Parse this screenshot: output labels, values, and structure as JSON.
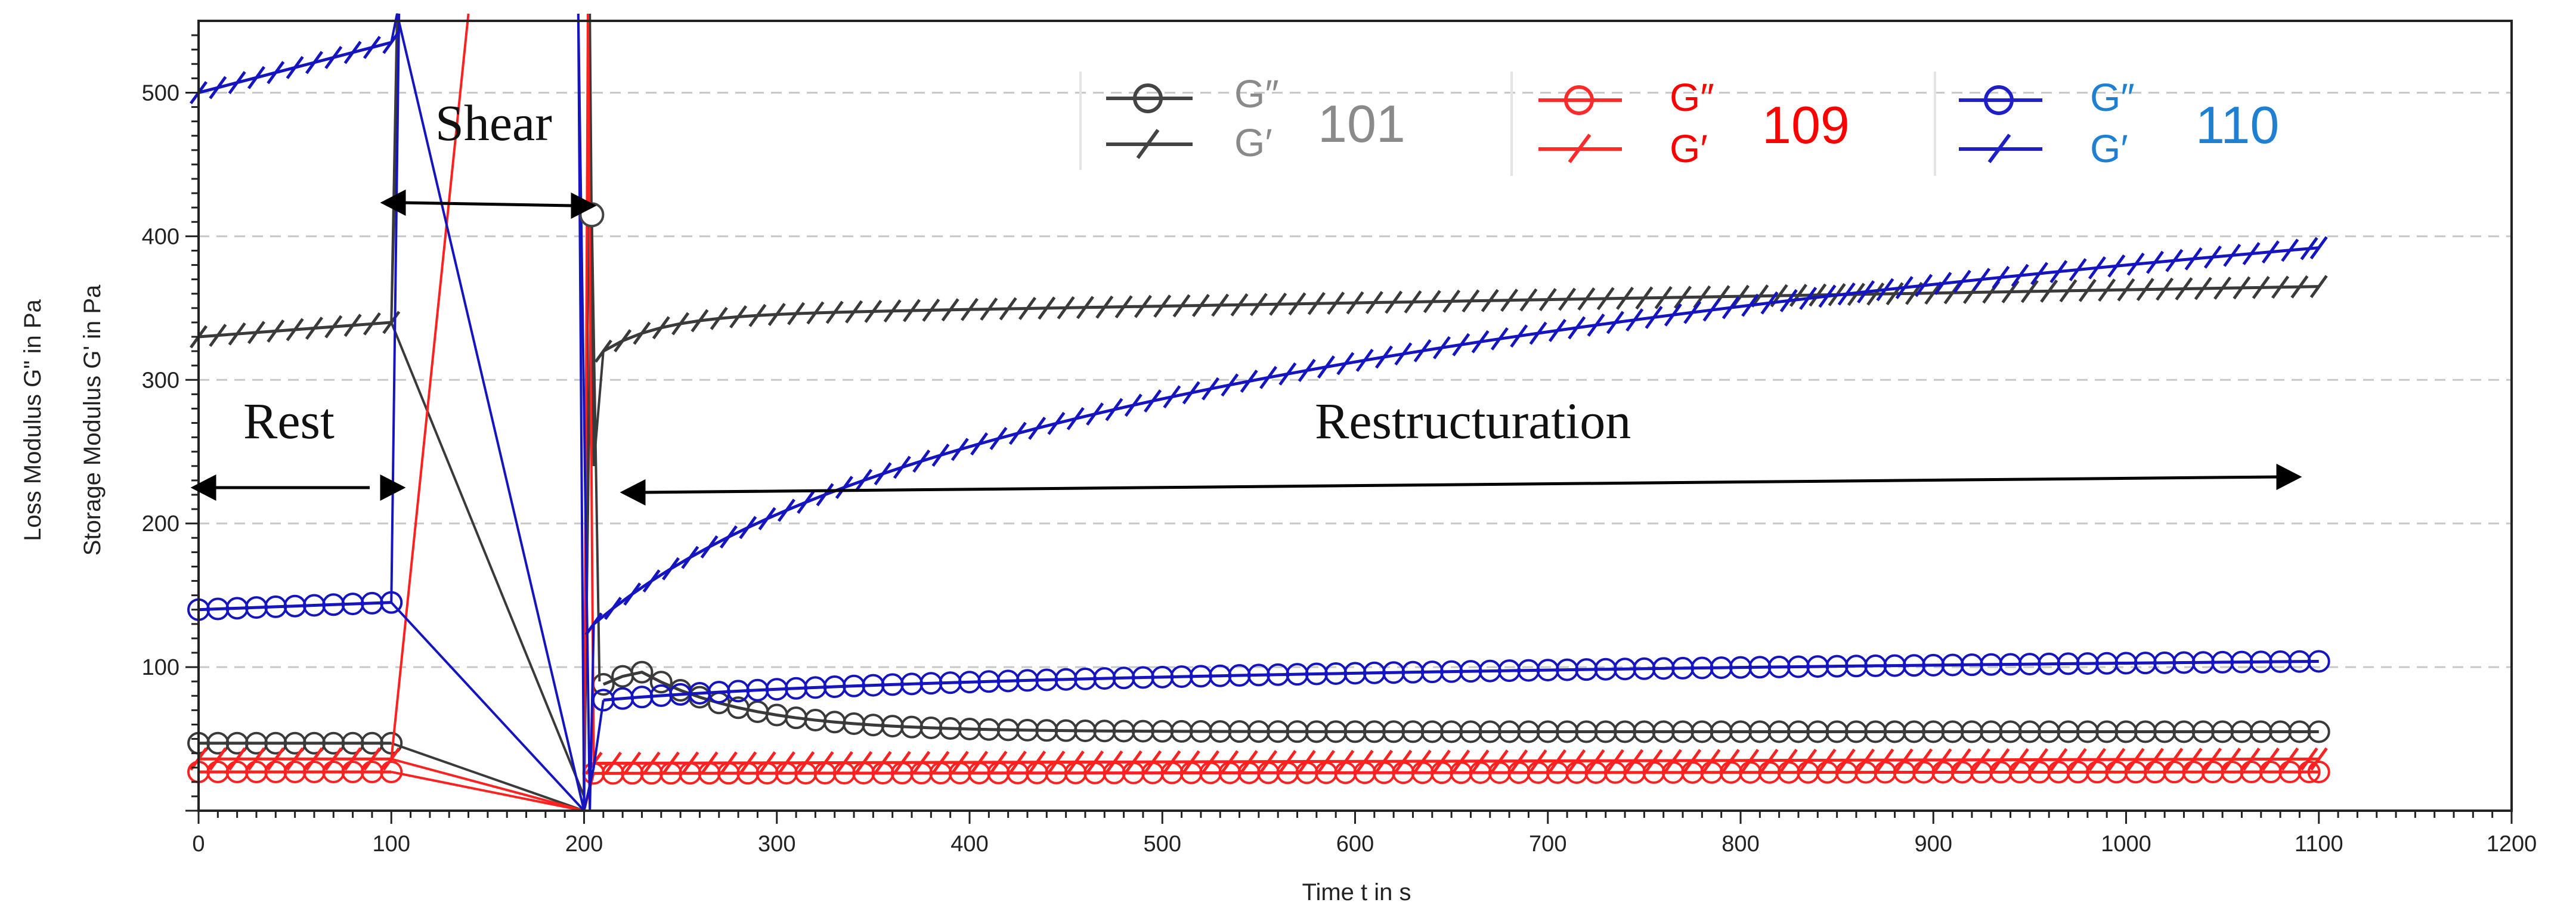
{
  "chart_data": {
    "type": "line",
    "xlabel": "Time t  in s",
    "ylabel_loss": "Loss Modulus G\" in Pa",
    "ylabel_storage": "Storage Modulus G' in Pa",
    "xlim": [
      0,
      1200
    ],
    "ylim": [
      0,
      550
    ],
    "xticks": [
      0,
      100,
      200,
      300,
      400,
      500,
      600,
      700,
      800,
      900,
      1000,
      1100,
      1200
    ],
    "yticks": [
      100,
      200,
      300,
      400,
      500
    ],
    "legend": [
      {
        "id": "101",
        "g2_label": "G″",
        "g1_label": "G′",
        "color": "#444444",
        "label_color": "#8a8a8a",
        "id_color": "#8a8a8a"
      },
      {
        "id": "109",
        "g2_label": "G″",
        "g1_label": "G′",
        "color": "#ff2a2a",
        "label_color": "#ff0000",
        "id_color": "#ff0000"
      },
      {
        "id": "110",
        "g2_label": "G″",
        "g1_label": "G′",
        "color": "#1f1fc8",
        "label_color": "#1f7fd0",
        "id_color": "#1f7fd0"
      }
    ],
    "annotations": {
      "rest": "Rest",
      "shear": "Shear",
      "restructuration": "Restructuration"
    },
    "series": [
      {
        "name": "101 G'",
        "color": "#3a3a3a",
        "marker": "slash",
        "segments": [
          {
            "x0": 0,
            "x1": 100,
            "y0": 330,
            "y1": 340
          },
          {
            "x0": 210,
            "x1": 1100,
            "y0": 320,
            "y1": 365,
            "model": "sat",
            "k": 30
          }
        ],
        "shear_path": [
          [
            100,
            340
          ],
          [
            103,
            555
          ],
          [
            104,
            550
          ],
          [
            100,
            340
          ],
          [
            200,
            10
          ],
          [
            203,
            555
          ],
          [
            205,
            240
          ],
          [
            210,
            320
          ]
        ]
      },
      {
        "name": "101 G\"",
        "color": "#3a3a3a",
        "marker": "circle",
        "segments": [
          {
            "x0": 0,
            "x1": 100,
            "y0": 47,
            "y1": 47
          },
          {
            "x0": 210,
            "x1": 1100,
            "peak_x": 228,
            "peak_y": 98,
            "end_y": 55,
            "model": "decay"
          }
        ],
        "shear_path": [
          [
            100,
            47
          ],
          [
            200,
            0
          ],
          [
            204,
            415
          ],
          [
            208,
            90
          ]
        ]
      },
      {
        "name": "109 G'",
        "color": "#ff2020",
        "marker": "slash",
        "segments": [
          {
            "x0": 0,
            "x1": 100,
            "y0": 36,
            "y1": 36
          },
          {
            "x0": 205,
            "x1": 1100,
            "y0": 33,
            "y1": 36,
            "model": "lin"
          }
        ],
        "shear_path": [
          [
            100,
            36
          ],
          [
            140,
            555
          ],
          [
            100,
            36
          ],
          [
            200,
            0
          ],
          [
            202,
            555
          ],
          [
            205,
            33
          ]
        ]
      },
      {
        "name": "109 G\"",
        "color": "#ff2020",
        "marker": "circle",
        "segments": [
          {
            "x0": 0,
            "x1": 100,
            "y0": 27,
            "y1": 27
          },
          {
            "x0": 205,
            "x1": 1100,
            "y0": 26,
            "y1": 27,
            "model": "lin"
          }
        ],
        "shear_path": [
          [
            100,
            27
          ],
          [
            200,
            0
          ],
          [
            205,
            26
          ]
        ]
      },
      {
        "name": "110 G'",
        "color": "#1414c0",
        "marker": "slash",
        "segments": [
          {
            "x0": 0,
            "x1": 100,
            "y0": 500,
            "y1": 535
          },
          {
            "x0": 205,
            "x1": 1100,
            "y0": 130,
            "y1": 392,
            "model": "log"
          }
        ],
        "shear_path": [
          [
            100,
            535
          ],
          [
            103,
            555
          ],
          [
            200,
            0
          ],
          [
            197,
            555
          ],
          [
            203,
            0
          ],
          [
            205,
            130
          ]
        ]
      },
      {
        "name": "110 G\"",
        "color": "#1414c0",
        "marker": "circle",
        "segments": [
          {
            "x0": 0,
            "x1": 100,
            "y0": 140,
            "y1": 145
          },
          {
            "x0": 210,
            "x1": 1100,
            "y0": 77,
            "y1": 104,
            "model": "log"
          }
        ],
        "shear_path": [
          [
            100,
            145
          ],
          [
            104,
            555
          ],
          [
            104,
            555
          ],
          [
            100,
            145
          ],
          [
            200,
            0
          ],
          [
            205,
            30
          ],
          [
            210,
            77
          ]
        ]
      }
    ]
  }
}
